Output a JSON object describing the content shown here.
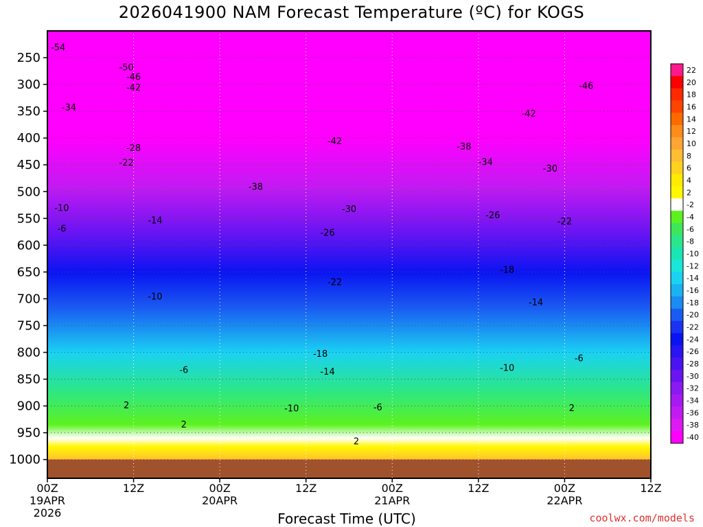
{
  "title": "2026041900 NAM Forecast Temperature (ºC) for KOGS",
  "xlabel": "Forecast Time (UTC)",
  "credit": "coolwx.com/models",
  "chart_data": {
    "type": "heatmap",
    "title": "2026041900 NAM Forecast Temperature (ºC) for KOGS",
    "xlabel": "Forecast Time (UTC)",
    "ylabel": "",
    "x_ticks": [
      {
        "hour": 0,
        "line1": "00Z",
        "line2": "19APR",
        "line3": "2026"
      },
      {
        "hour": 12,
        "line1": "12Z"
      },
      {
        "hour": 24,
        "line1": "00Z",
        "line2": "20APR"
      },
      {
        "hour": 36,
        "line1": "12Z"
      },
      {
        "hour": 48,
        "line1": "00Z",
        "line2": "21APR"
      },
      {
        "hour": 60,
        "line1": "12Z"
      },
      {
        "hour": 72,
        "line1": "00Z",
        "line2": "22APR"
      },
      {
        "hour": 84,
        "line1": "12Z"
      }
    ],
    "y_ticks": [
      250,
      300,
      350,
      400,
      450,
      500,
      550,
      600,
      650,
      700,
      750,
      800,
      850,
      900,
      950,
      1000
    ],
    "y_range_hpa": [
      200,
      1035
    ],
    "colorbar_labels": [
      22,
      20,
      18,
      16,
      14,
      12,
      10,
      8,
      6,
      4,
      2,
      -2,
      -4,
      -6,
      -8,
      -10,
      -12,
      -14,
      -16,
      -18,
      -20,
      -22,
      -24,
      -26,
      -28,
      -30,
      -32,
      -34,
      -36,
      -38,
      -40
    ],
    "colorbar_colors": [
      "#ff1a8c",
      "#ff0000",
      "#ff2a00",
      "#ff4400",
      "#ff6a00",
      "#ff8c1a",
      "#ffa533",
      "#ffbd33",
      "#ffd21f",
      "#ffea00",
      "#fff700",
      "#ffffff",
      "#5cf21f",
      "#3ee65a",
      "#2ae68c",
      "#1ae6b3",
      "#1ae6d9",
      "#1ad2f2",
      "#1ab3f2",
      "#1a8cf2",
      "#1a5cf2",
      "#1a33f2",
      "#0a14f2",
      "#2a14f2",
      "#4a14f2",
      "#6a14f2",
      "#8a1af2",
      "#a61af2",
      "#c21af2",
      "#de1af2",
      "#ff00ff"
    ],
    "contour_labels": [
      {
        "label": "-54",
        "hour": 1.5,
        "p": 230
      },
      {
        "label": "-50",
        "hour": 11,
        "p": 267
      },
      {
        "label": "-46",
        "hour": 12,
        "p": 285
      },
      {
        "label": "-42",
        "hour": 12,
        "p": 305
      },
      {
        "label": "-34",
        "hour": 3,
        "p": 342
      },
      {
        "label": "-28",
        "hour": 12,
        "p": 418
      },
      {
        "label": "-22",
        "hour": 11,
        "p": 445
      },
      {
        "label": "-10",
        "hour": 2,
        "p": 530
      },
      {
        "label": "-6",
        "hour": 2,
        "p": 568
      },
      {
        "label": "-14",
        "hour": 15,
        "p": 553
      },
      {
        "label": "-10",
        "hour": 15,
        "p": 695
      },
      {
        "label": "-6",
        "hour": 19,
        "p": 832
      },
      {
        "label": "2",
        "hour": 11,
        "p": 898
      },
      {
        "label": "2",
        "hour": 19,
        "p": 934
      },
      {
        "label": "-38",
        "hour": 29,
        "p": 490
      },
      {
        "label": "-42",
        "hour": 40,
        "p": 405
      },
      {
        "label": "-30",
        "hour": 42,
        "p": 532
      },
      {
        "label": "-26",
        "hour": 39,
        "p": 576
      },
      {
        "label": "-22",
        "hour": 40,
        "p": 668
      },
      {
        "label": "-18",
        "hour": 38,
        "p": 802
      },
      {
        "label": "-14",
        "hour": 39,
        "p": 835
      },
      {
        "label": "-10",
        "hour": 34,
        "p": 904
      },
      {
        "label": "-6",
        "hour": 46,
        "p": 902
      },
      {
        "label": "2",
        "hour": 43,
        "p": 965
      },
      {
        "label": "-38",
        "hour": 58,
        "p": 415
      },
      {
        "label": "-34",
        "hour": 61,
        "p": 444
      },
      {
        "label": "-26",
        "hour": 62,
        "p": 543
      },
      {
        "label": "-18",
        "hour": 64,
        "p": 645
      },
      {
        "label": "-10",
        "hour": 64,
        "p": 828
      },
      {
        "label": "-46",
        "hour": 75,
        "p": 302
      },
      {
        "label": "-42",
        "hour": 67,
        "p": 354
      },
      {
        "label": "-30",
        "hour": 70,
        "p": 456
      },
      {
        "label": "-22",
        "hour": 72,
        "p": 555
      },
      {
        "label": "-14",
        "hour": 68,
        "p": 706
      },
      {
        "label": "-6",
        "hour": 74,
        "p": 810
      },
      {
        "label": "2",
        "hour": 73,
        "p": 903
      }
    ]
  }
}
